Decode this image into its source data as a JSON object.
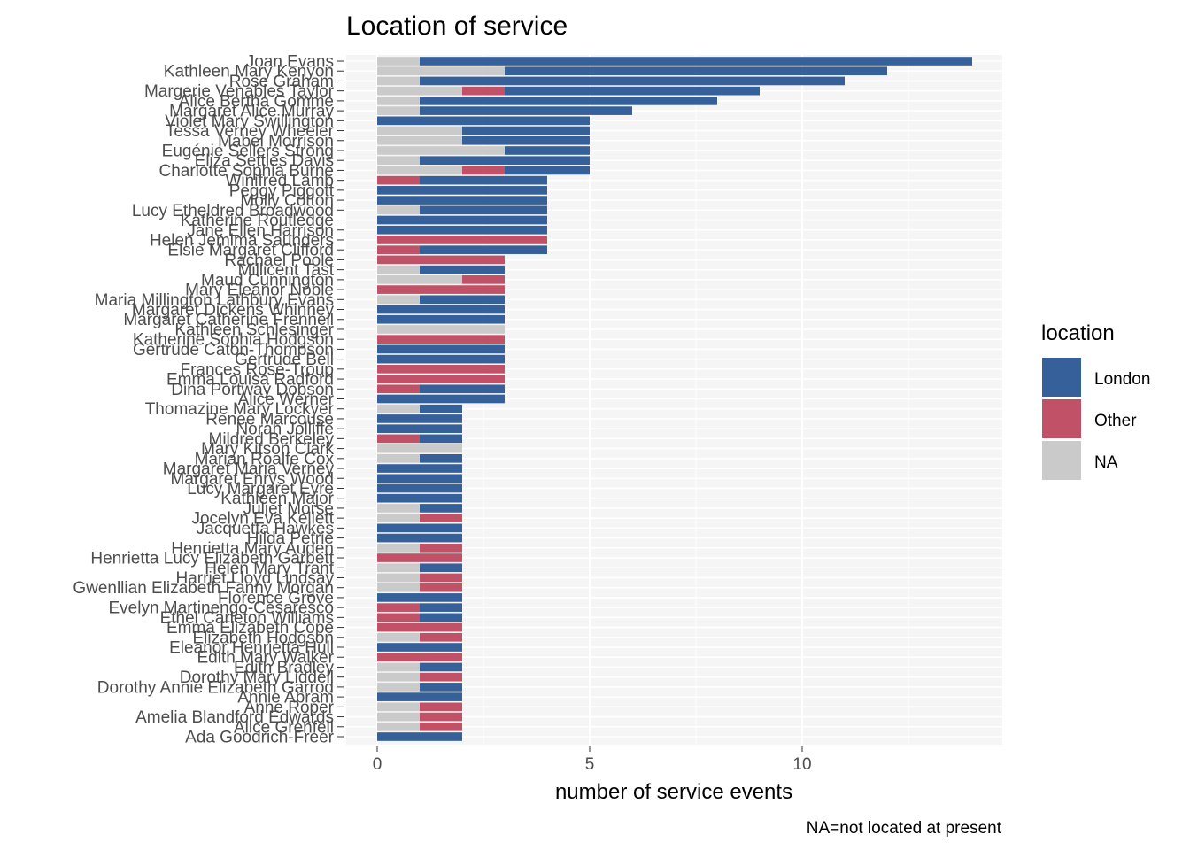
{
  "chart_data": {
    "type": "bar",
    "orientation": "horizontal",
    "stacked": true,
    "title": "Location of service",
    "xlabel": "number of service events",
    "ylabel": "",
    "caption": "NA=not located at present",
    "xlim": [
      0,
      14.6
    ],
    "xticks": [
      0,
      5,
      10
    ],
    "grid": true,
    "legend": {
      "title": "location",
      "position": "right",
      "entries": [
        {
          "key": "London",
          "label": "London",
          "color": "#36609a"
        },
        {
          "key": "Other",
          "label": "Other",
          "color": "#c15166"
        },
        {
          "key": "NA",
          "label": "NA",
          "color": "#cacaca"
        }
      ]
    },
    "segment_order": [
      "NA",
      "Other",
      "London"
    ],
    "categories": [
      "Joan Evans",
      "Kathleen Mary Kenyon",
      "Rose Graham",
      "Margerie Venables Taylor",
      "Alice Bertha Gomme",
      "Margaret Alice Murray",
      "Violet Mary Swillington",
      "Tessa Verney Wheeler",
      "Mabel Morrison",
      "Eugénie Sellers Strong",
      "Eliza Settles Davis",
      "Charlotte Sophia Burne",
      "Winifred Lamb",
      "Peggy Piggott",
      "Molly Cotton",
      "Lucy Etheldred Broadwood",
      "Katherine Routledge",
      "Jane Ellen Harrison",
      "Helen Jemima Saunders",
      "Elsie Margaret Clifford",
      "Rachael Poole",
      "Millicent Tast",
      "Maud Cunnington",
      "Mary Eleanor Noble",
      "Maria Millington Lathbury Evans",
      "Margaret Dickens Whinney",
      "Margaret Catherine Frenneil",
      "Kathleen Schlesinger",
      "Katherine Sophia Hodgson",
      "Gertrude Caton-Thompson",
      "Gertrude Bell",
      "Frances Rose-Troup",
      "Emma Louisa Radford",
      "Dina Portway Dobson",
      "Alice Werner",
      "Thomazine Mary Lockyer",
      "Renee Marcouse",
      "Norah Jolliffe",
      "Mildred Berkeley",
      "Mary Kitson Clark",
      "Marian Roalfe Cox",
      "Margaret Maria Verney",
      "Margaret Enrys Wood",
      "Lucy Margaret Eyre",
      "Kathleen Major",
      "Juliet Morse",
      "Jocelyn Eva Kellett",
      "Jacquetta Hawkes",
      "Hilda Petrie",
      "Henrietta Mary Auden",
      "Henrietta Lucy Elizabeth Garbett",
      "Helen Mary Trant",
      "Harriet Lloyd Lindsay",
      "Gwenllian Elizabeth Fanny Morgan",
      "Florence Grove",
      "Evelyn Martinengo-Cesaresco",
      "Ethel Carleton Williams",
      "Emma Elizabeth Cope",
      "Elizabeth Hodgson",
      "Eleanor Henrietta Hull",
      "Edith Mary Walker",
      "Edith Bradley",
      "Dorothy Mary Liddell",
      "Dorothy Annie Elizabeth Garrod",
      "Annie Abram",
      "Anne Roper",
      "Amelia Blandford Edwards",
      "Alice Grenfell",
      "Ada Goodrich-Freer"
    ],
    "series": [
      {
        "name": "NA",
        "values": [
          1,
          3,
          1,
          2,
          1,
          1,
          0,
          2,
          2,
          3,
          1,
          2,
          0,
          0,
          0,
          1,
          0,
          0,
          0,
          0,
          0,
          1,
          2,
          0,
          1,
          0,
          0,
          3,
          0,
          0,
          0,
          0,
          0,
          0,
          0,
          1,
          0,
          0,
          0,
          2,
          1,
          0,
          0,
          0,
          0,
          1,
          1,
          0,
          0,
          1,
          0,
          1,
          1,
          1,
          0,
          0,
          0,
          0,
          1,
          0,
          0,
          1,
          1,
          1,
          0,
          1,
          1,
          1,
          0
        ]
      },
      {
        "name": "Other",
        "values": [
          0,
          0,
          0,
          1,
          0,
          0,
          0,
          0,
          0,
          0,
          0,
          1,
          1,
          0,
          0,
          0,
          0,
          0,
          4,
          1,
          3,
          0,
          1,
          3,
          0,
          0,
          0,
          0,
          3,
          0,
          0,
          3,
          3,
          1,
          0,
          0,
          0,
          0,
          1,
          0,
          0,
          0,
          0,
          0,
          0,
          0,
          1,
          0,
          0,
          1,
          2,
          0,
          1,
          1,
          0,
          1,
          1,
          2,
          1,
          0,
          2,
          0,
          1,
          0,
          0,
          1,
          1,
          1,
          0
        ]
      },
      {
        "name": "London",
        "values": [
          13,
          9,
          10,
          6,
          7,
          5,
          5,
          3,
          3,
          2,
          4,
          2,
          3,
          4,
          4,
          3,
          4,
          4,
          0,
          3,
          0,
          2,
          0,
          0,
          2,
          3,
          3,
          0,
          0,
          3,
          3,
          0,
          0,
          2,
          3,
          1,
          2,
          2,
          1,
          0,
          1,
          2,
          2,
          2,
          2,
          1,
          0,
          2,
          2,
          0,
          0,
          1,
          0,
          0,
          2,
          1,
          1,
          0,
          0,
          2,
          0,
          1,
          0,
          1,
          2,
          0,
          0,
          0,
          2
        ]
      }
    ]
  }
}
